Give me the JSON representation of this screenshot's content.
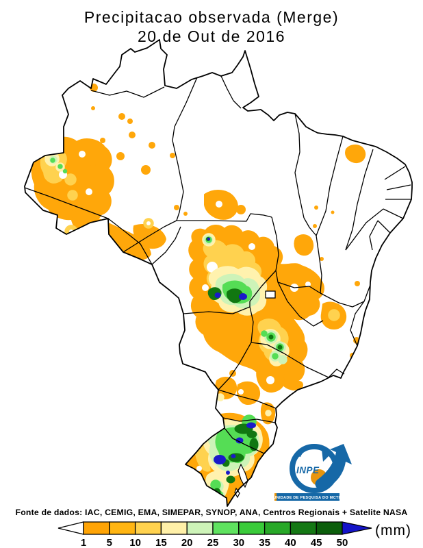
{
  "title": {
    "line1": "Precipitacao observada (Merge)",
    "line2": "20 de Out de 2016"
  },
  "footer": {
    "source": "Fonte de dados: IAC, CEMIG, EMA, SIMEPAR, SYNOP, ANA, Centros Regionais + Satelite NASA"
  },
  "legend": {
    "unit": "(mm)",
    "ticks": [
      "1",
      "5",
      "10",
      "15",
      "20",
      "25",
      "30",
      "35",
      "40",
      "45",
      "50"
    ],
    "segment_colors": [
      "#FFA405",
      "#FFB512",
      "#FFD24F",
      "#FFF0A8",
      "#CDF3B8",
      "#5FE25F",
      "#3ACB3A",
      "#28A828",
      "#147814",
      "#0B5E0B"
    ],
    "below_min_color": "#FFFFFF",
    "above_max_color": "#1414C8"
  },
  "logo": {
    "acronym": "INPE",
    "banner": "UNIDADE DE PESQUISA DO MCTIC",
    "blue": "#1668A7",
    "orange": "#E8950C"
  },
  "map": {
    "land_color": "#FFFFFF",
    "border_color": "#000000"
  }
}
